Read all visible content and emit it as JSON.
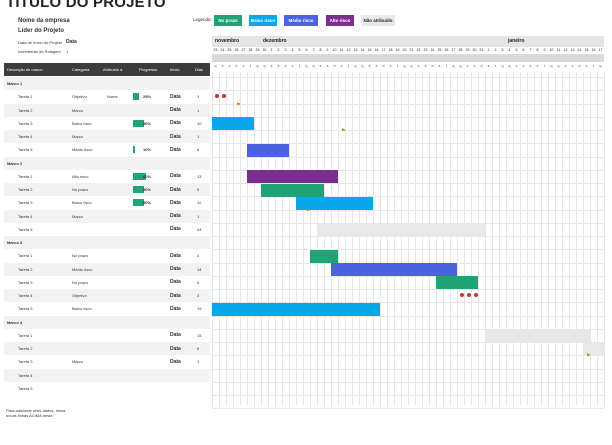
{
  "title": "TÍTULO DO PROJETO",
  "company": "Nome da empresa",
  "leader": "Líder do Projeto",
  "start_label": "Data de Início do Projeto",
  "start_value": "Data",
  "increment_label": "Incremento de Rolagem",
  "increment_value": "1",
  "legend": {
    "label": "Legenda:",
    "items": [
      {
        "label": "No prazo",
        "color": "#20a375"
      },
      {
        "label": "Baixo risco",
        "color": "#05a8e8"
      },
      {
        "label": "Médio risco",
        "color": "#4b63de"
      },
      {
        "label": "Alto risco",
        "color": "#7a2e8f"
      },
      {
        "label": "Não atribuído",
        "color": "#e8e8e8"
      }
    ]
  },
  "columns": [
    "Descrição de marco",
    "Categoria",
    "Atribuído a",
    "Progresso",
    "Início",
    "Dias"
  ],
  "months": [
    "novembro",
    "dezembro",
    "janeiro"
  ],
  "day_numbers": [
    "23",
    "24",
    "25",
    "26",
    "27",
    "28",
    "29",
    "30",
    "1",
    "2",
    "3",
    "4",
    "5",
    "6",
    "7",
    "8",
    "9",
    "10",
    "11",
    "12",
    "13",
    "14",
    "15",
    "16",
    "17",
    "18",
    "19",
    "20",
    "21",
    "22",
    "23",
    "24",
    "25",
    "26",
    "27",
    "28",
    "29",
    "30",
    "31",
    "1",
    "2",
    "3",
    "4",
    "5",
    "6",
    "7",
    "8",
    "9",
    "10",
    "11",
    "12",
    "13",
    "14",
    "15",
    "16",
    "17"
  ],
  "weekdays": [
    "q",
    "s",
    "s",
    "d",
    "s",
    "t",
    "q",
    "q",
    "s",
    "s",
    "d",
    "s",
    "t",
    "q",
    "q",
    "s",
    "s",
    "d",
    "s",
    "t",
    "q",
    "q",
    "s",
    "s",
    "d",
    "s",
    "t",
    "q",
    "q",
    "s",
    "s",
    "d",
    "s",
    "t",
    "q",
    "q",
    "s",
    "s",
    "d",
    "s",
    "t",
    "q",
    "q",
    "s",
    "s",
    "d",
    "s",
    "t",
    "q",
    "q",
    "s",
    "s",
    "d",
    "s",
    "t",
    "q"
  ],
  "rows": [
    {
      "type": "phase",
      "name": "Marco 1"
    },
    {
      "type": "task",
      "name": "Tarefa 1",
      "category": "Objetivo",
      "assigned": "Nome",
      "progress": 25,
      "progress_label": "25%",
      "start": "Data",
      "days": "1"
    },
    {
      "type": "task",
      "name": "Tarefa 2",
      "category": "Marco",
      "assigned": "",
      "progress": null,
      "progress_label": "",
      "start": "Data",
      "days": "1"
    },
    {
      "type": "task",
      "name": "Tarefa 3",
      "category": "Baixo risco",
      "assigned": "",
      "progress": 50,
      "progress_label": "50%",
      "start": "Data",
      "days": "10"
    },
    {
      "type": "task",
      "name": "Tarefa 4",
      "category": "Marco",
      "assigned": "",
      "progress": null,
      "progress_label": "",
      "start": "Data",
      "days": "1"
    },
    {
      "type": "task",
      "name": "Tarefa 5",
      "category": "Médio risco",
      "assigned": "",
      "progress": 10,
      "progress_label": "10%",
      "start": "Data",
      "days": "6"
    },
    {
      "type": "phase",
      "name": "Marco 2"
    },
    {
      "type": "task",
      "name": "Tarefa 1",
      "category": "Alto risco",
      "assigned": "",
      "progress": 60,
      "progress_label": "60%",
      "start": "Data",
      "days": "13"
    },
    {
      "type": "task",
      "name": "Tarefa 2",
      "category": "No prazo",
      "assigned": "",
      "progress": 50,
      "progress_label": "50%",
      "start": "Data",
      "days": "9"
    },
    {
      "type": "task",
      "name": "Tarefa 3",
      "category": "Baixo risco",
      "assigned": "",
      "progress": 50,
      "progress_label": "50%",
      "start": "Data",
      "days": "11"
    },
    {
      "type": "task",
      "name": "Tarefa 4",
      "category": "Marco",
      "assigned": "",
      "progress": null,
      "progress_label": "",
      "start": "Data",
      "days": "1"
    },
    {
      "type": "task",
      "name": "Tarefa 5",
      "category": "",
      "assigned": "",
      "progress": null,
      "progress_label": "",
      "start": "Data",
      "days": "24"
    },
    {
      "type": "phase",
      "name": "Marco 3"
    },
    {
      "type": "task",
      "name": "Tarefa 1",
      "category": "No prazo",
      "assigned": "",
      "progress": null,
      "progress_label": "",
      "start": "Data",
      "days": "4"
    },
    {
      "type": "task",
      "name": "Tarefa 2",
      "category": "Médio risco",
      "assigned": "",
      "progress": null,
      "progress_label": "",
      "start": "Data",
      "days": "14"
    },
    {
      "type": "task",
      "name": "Tarefa 3",
      "category": "No prazo",
      "assigned": "",
      "progress": null,
      "progress_label": "",
      "start": "Data",
      "days": "6"
    },
    {
      "type": "task",
      "name": "Tarefa 4",
      "category": "Objetivo",
      "assigned": "",
      "progress": null,
      "progress_label": "",
      "start": "Data",
      "days": "3"
    },
    {
      "type": "task",
      "name": "Tarefa 5",
      "category": "Baixo risco",
      "assigned": "",
      "progress": null,
      "progress_label": "",
      "start": "Data",
      "days": "19"
    },
    {
      "type": "phase",
      "name": "Marco 4"
    },
    {
      "type": "task",
      "name": "Tarefa 1",
      "category": "",
      "assigned": "",
      "progress": null,
      "progress_label": "",
      "start": "Data",
      "days": "15"
    },
    {
      "type": "task",
      "name": "Tarefa 2",
      "category": "",
      "assigned": "",
      "progress": null,
      "progress_label": "",
      "start": "Data",
      "days": "5"
    },
    {
      "type": "task",
      "name": "Tarefa 3",
      "category": "Marco",
      "assigned": "",
      "progress": null,
      "progress_label": "",
      "start": "Data",
      "days": "1"
    },
    {
      "type": "task",
      "name": "Tarefa 4",
      "category": "",
      "assigned": "",
      "progress": null,
      "progress_label": "",
      "start": "",
      "days": ""
    },
    {
      "type": "task",
      "name": "Tarefa 5",
      "category": "",
      "assigned": "",
      "progress": null,
      "progress_label": "",
      "start": "",
      "days": ""
    }
  ],
  "footer": "Para adicionar mais dados, Insira novas linhas ACIMA desta"
}
